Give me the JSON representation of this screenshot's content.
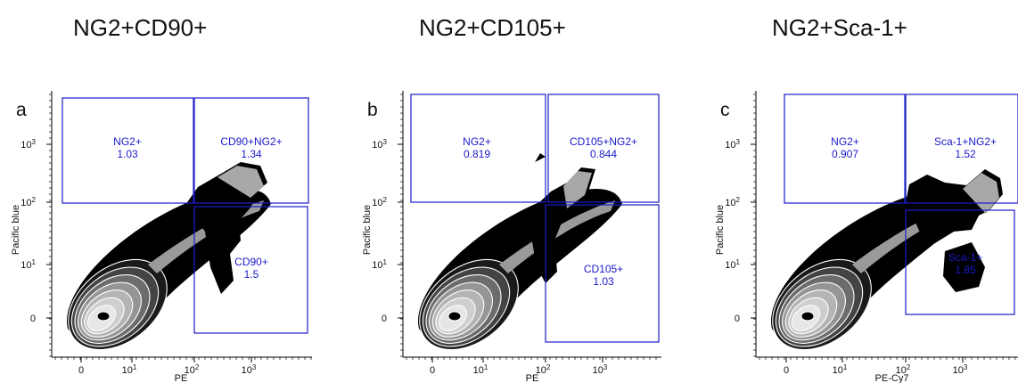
{
  "chart_data": [
    {
      "type": "contour-density",
      "letter": "a",
      "title": "NG2+CD90+",
      "xlabel": "PE",
      "ylabel": "Pacific blue",
      "xticks": [
        "0",
        "10",
        "10",
        "10"
      ],
      "xtick_exp": [
        "",
        "1",
        "2",
        "3"
      ],
      "yticks": [
        "0",
        "10",
        "10",
        "10"
      ],
      "ytick_exp": [
        "",
        "1",
        "2",
        "3"
      ],
      "gates": [
        {
          "name": "NG2+",
          "value": "1.03"
        },
        {
          "name": "CD90+NG2+",
          "value": "1.34"
        },
        {
          "name": "CD90+",
          "value": "1.5"
        }
      ]
    },
    {
      "type": "contour-density",
      "letter": "b",
      "title": "NG2+CD105+",
      "xlabel": "PE",
      "ylabel": "Pacific blue",
      "xticks": [
        "0",
        "10",
        "10",
        "10"
      ],
      "xtick_exp": [
        "",
        "1",
        "2",
        "3"
      ],
      "yticks": [
        "0",
        "10",
        "10",
        "10"
      ],
      "ytick_exp": [
        "",
        "1",
        "2",
        "3"
      ],
      "gates": [
        {
          "name": "NG2+",
          "value": "0.819"
        },
        {
          "name": "CD105+NG2+",
          "value": "0.844"
        },
        {
          "name": "CD105+",
          "value": "1.03"
        }
      ]
    },
    {
      "type": "contour-density",
      "letter": "c",
      "title": "NG2+Sca-1+",
      "xlabel": "PE-Cy7",
      "ylabel": "Pacific blue",
      "xticks": [
        "0",
        "10",
        "10",
        "10"
      ],
      "xtick_exp": [
        "",
        "1",
        "2",
        "3"
      ],
      "yticks": [
        "0",
        "10",
        "10",
        "10"
      ],
      "ytick_exp": [
        "",
        "1",
        "2",
        "3"
      ],
      "gates": [
        {
          "name": "NG2+",
          "value": "0.907"
        },
        {
          "name": "Sca-1+NG2+",
          "value": "1.52"
        },
        {
          "name": "Sca-1+",
          "value": "1.85"
        }
      ]
    }
  ]
}
